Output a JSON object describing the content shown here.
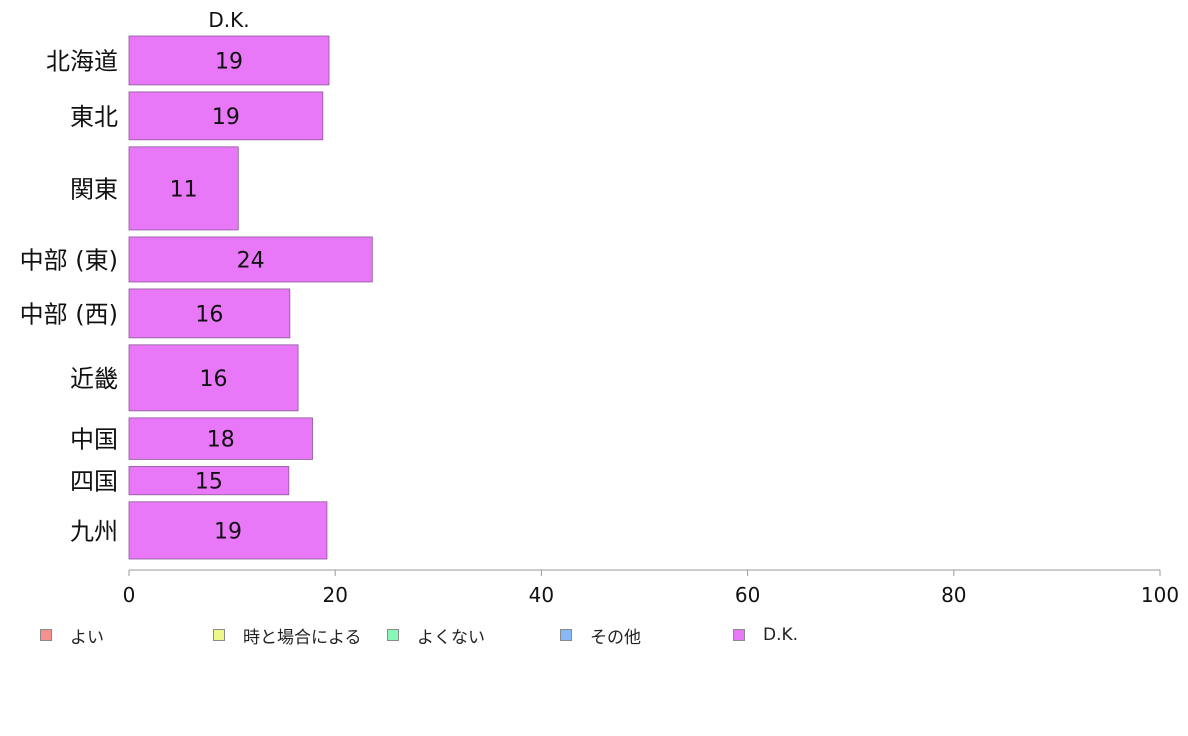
{
  "chart_data": {
    "type": "bar",
    "orientation": "horizontal",
    "stacked": true,
    "series_header": "D.K.",
    "categories": [
      "北海道",
      "東北",
      "関東",
      "中部 (東)",
      "中部 (西)",
      "近畿",
      "中国",
      "四国",
      "九州"
    ],
    "series": [
      {
        "name": "D.K.",
        "color": "#e878f8",
        "values": [
          19,
          19,
          11,
          24,
          16,
          16,
          18,
          15,
          19
        ],
        "bar_values": [
          19.4,
          18.8,
          10.6,
          23.6,
          15.6,
          16.4,
          17.8,
          15.5,
          19.2
        ]
      }
    ],
    "xlim": [
      0,
      100
    ],
    "xticks": [
      "0",
      "20",
      "40",
      "60",
      "80",
      "100"
    ],
    "bar_weights": [
      1.0,
      0.98,
      1.7,
      0.92,
      1.0,
      1.35,
      0.85,
      0.58,
      1.17
    ],
    "grid": false,
    "legend_position": "bottom",
    "legend": [
      {
        "label": "よい",
        "color": "#f89090"
      },
      {
        "label": "時と場合による",
        "color": "#eef888"
      },
      {
        "label": "よくない",
        "color": "#88f8b8"
      },
      {
        "label": "その他",
        "color": "#88b8f8"
      },
      {
        "label": "D.K.",
        "color": "#e878f8"
      }
    ]
  }
}
